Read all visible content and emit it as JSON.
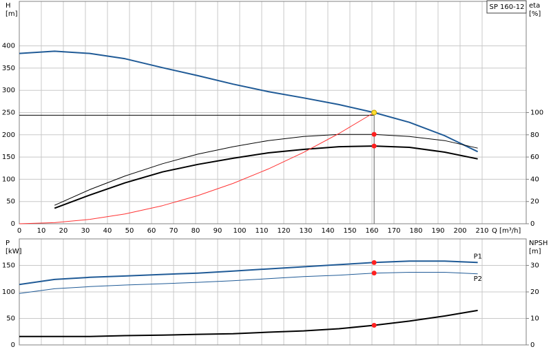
{
  "chart_data": [
    {
      "type": "line",
      "label_box": "SP 160-12",
      "xlabel": "Q [m³/h]",
      "ylabel": [
        "H",
        "[m]"
      ],
      "y2label": [
        "eta",
        "[%]"
      ],
      "x": [
        0,
        16,
        32,
        48,
        65,
        81,
        97,
        113,
        129,
        145,
        161,
        177,
        193,
        208
      ],
      "xlim": [
        0,
        230
      ],
      "xticks": [
        0,
        10,
        20,
        30,
        40,
        50,
        60,
        70,
        80,
        90,
        100,
        110,
        120,
        130,
        140,
        150,
        160,
        170,
        180,
        190,
        200,
        210
      ],
      "ylim": [
        0,
        500
      ],
      "yticks": [
        0,
        50,
        100,
        150,
        200,
        250,
        300,
        350,
        400
      ],
      "y2lim": [
        0,
        200
      ],
      "y2ticks": [
        0,
        20,
        40,
        60,
        80,
        100
      ],
      "grid": true,
      "series": [
        {
          "color": "#1f5a96",
          "width": 2,
          "values": [
            383,
            388,
            383,
            371,
            351,
            333,
            314,
            297,
            283,
            268,
            250,
            228,
            198,
            162
          ]
        },
        {
          "color": "#000000",
          "width": 1,
          "axis": "y2",
          "values": [
            null,
            16.6,
            30.7,
            43,
            54,
            62.6,
            69.3,
            74.8,
            78.5,
            80.4,
            80.4,
            78.5,
            74.8,
            68
          ]
        },
        {
          "color": "#000000",
          "width": 2,
          "axis": "y2",
          "values": [
            null,
            14,
            25.8,
            36.8,
            46.6,
            53.4,
            58.9,
            63.8,
            66.9,
            69.3,
            69.9,
            68.7,
            64.4,
            58.3
          ]
        },
        {
          "color": "#ff3333",
          "width": 1,
          "x": [
            0,
            16,
            32,
            48,
            65,
            81,
            97,
            113,
            129,
            145,
            161
          ],
          "values": [
            0,
            2.5,
            9.9,
            22.2,
            40.7,
            63.3,
            90.7,
            123.2,
            160.5,
            202.8,
            250
          ]
        }
      ],
      "crosshair": {
        "x": 161,
        "y": 244
      },
      "points": [
        {
          "x": 161,
          "y": 250,
          "color": "#ffdd33"
        },
        {
          "x": 161,
          "y": 80.4,
          "axis": "y2",
          "color": "#ff2020"
        },
        {
          "x": 161,
          "y": 69.9,
          "axis": "y2",
          "color": "#ff2020"
        }
      ]
    },
    {
      "type": "line",
      "ylabel": [
        "P",
        "[kW]"
      ],
      "y2label": [
        "NPSH",
        "[m]"
      ],
      "x": [
        0,
        16,
        32,
        48,
        65,
        81,
        97,
        113,
        129,
        145,
        161,
        177,
        193,
        208
      ],
      "xlim": [
        0,
        230
      ],
      "xticks": [
        0,
        10,
        20,
        30,
        40,
        50,
        60,
        70,
        80,
        90,
        100,
        110,
        120,
        130,
        140,
        150,
        160,
        170,
        180,
        190,
        200,
        210
      ],
      "ylim": [
        0,
        200
      ],
      "yticks": [
        0,
        50,
        100,
        150
      ],
      "y2lim": [
        0,
        40
      ],
      "y2ticks": [
        0,
        10,
        20,
        30
      ],
      "grid": true,
      "series": [
        {
          "name": "P1",
          "color": "#1f5a96",
          "width": 2,
          "values": [
            114,
            123.5,
            127.5,
            130,
            133,
            135.5,
            139.4,
            143.4,
            147.4,
            151.4,
            155.4,
            158,
            158,
            155.4
          ]
        },
        {
          "name": "P2",
          "color": "#1f5a96",
          "width": 1,
          "values": [
            97,
            106,
            110,
            113,
            115.5,
            118,
            121,
            125,
            129,
            131.5,
            135.5,
            137,
            137,
            134
          ]
        },
        {
          "color": "#000000",
          "width": 2,
          "axis": "y2",
          "values": [
            3.2,
            3.2,
            3.2,
            3.5,
            3.7,
            4.0,
            4.2,
            4.8,
            5.3,
            6.1,
            7.4,
            9.0,
            10.9,
            13.0
          ]
        }
      ],
      "points": [
        {
          "x": 161,
          "y": 155.4,
          "color": "#ff2020"
        },
        {
          "x": 161,
          "y": 135.5,
          "color": "#ff2020"
        },
        {
          "x": 161,
          "y": 7.4,
          "axis": "y2",
          "color": "#ff2020"
        }
      ]
    }
  ]
}
